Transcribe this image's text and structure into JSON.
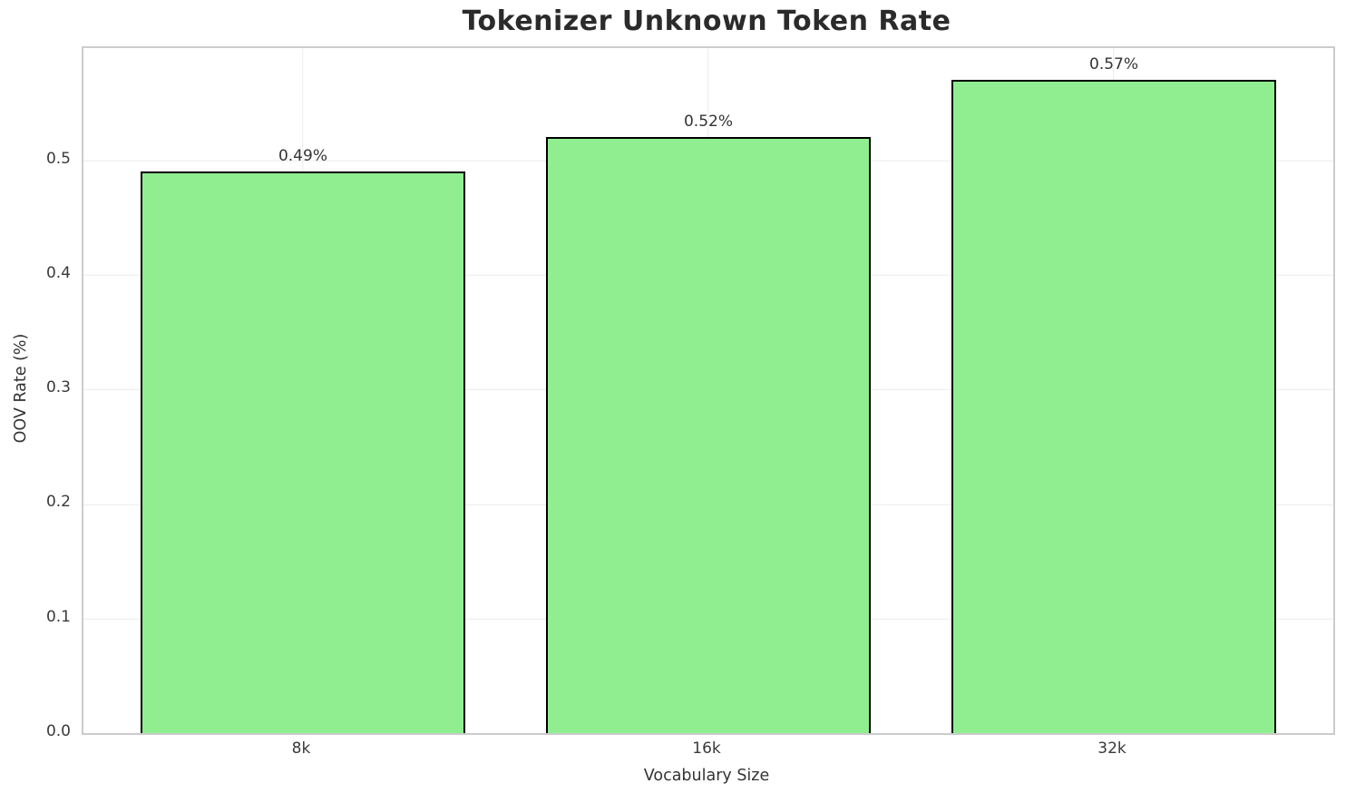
{
  "chart_data": {
    "type": "bar",
    "title": "Tokenizer Unknown Token Rate",
    "xlabel": "Vocabulary Size",
    "ylabel": "OOV Rate (%)",
    "categories": [
      "8k",
      "16k",
      "32k"
    ],
    "values": [
      0.49,
      0.52,
      0.57
    ],
    "bar_labels": [
      "0.49%",
      "0.52%",
      "0.57%"
    ],
    "ylim": [
      0,
      0.598
    ],
    "yticks": [
      0.0,
      0.1,
      0.2,
      0.3,
      0.4,
      0.5
    ],
    "ytick_labels": [
      "0.0",
      "0.1",
      "0.2",
      "0.3",
      "0.4",
      "0.5"
    ],
    "grid": true,
    "legend": "none",
    "bar_color": "#90EE90",
    "bar_edge_color": "#000000",
    "grid_color": "#ececec",
    "spine_color": "#cccccc",
    "text_color": "#2b2b2b",
    "background_color": "#ffffff"
  }
}
